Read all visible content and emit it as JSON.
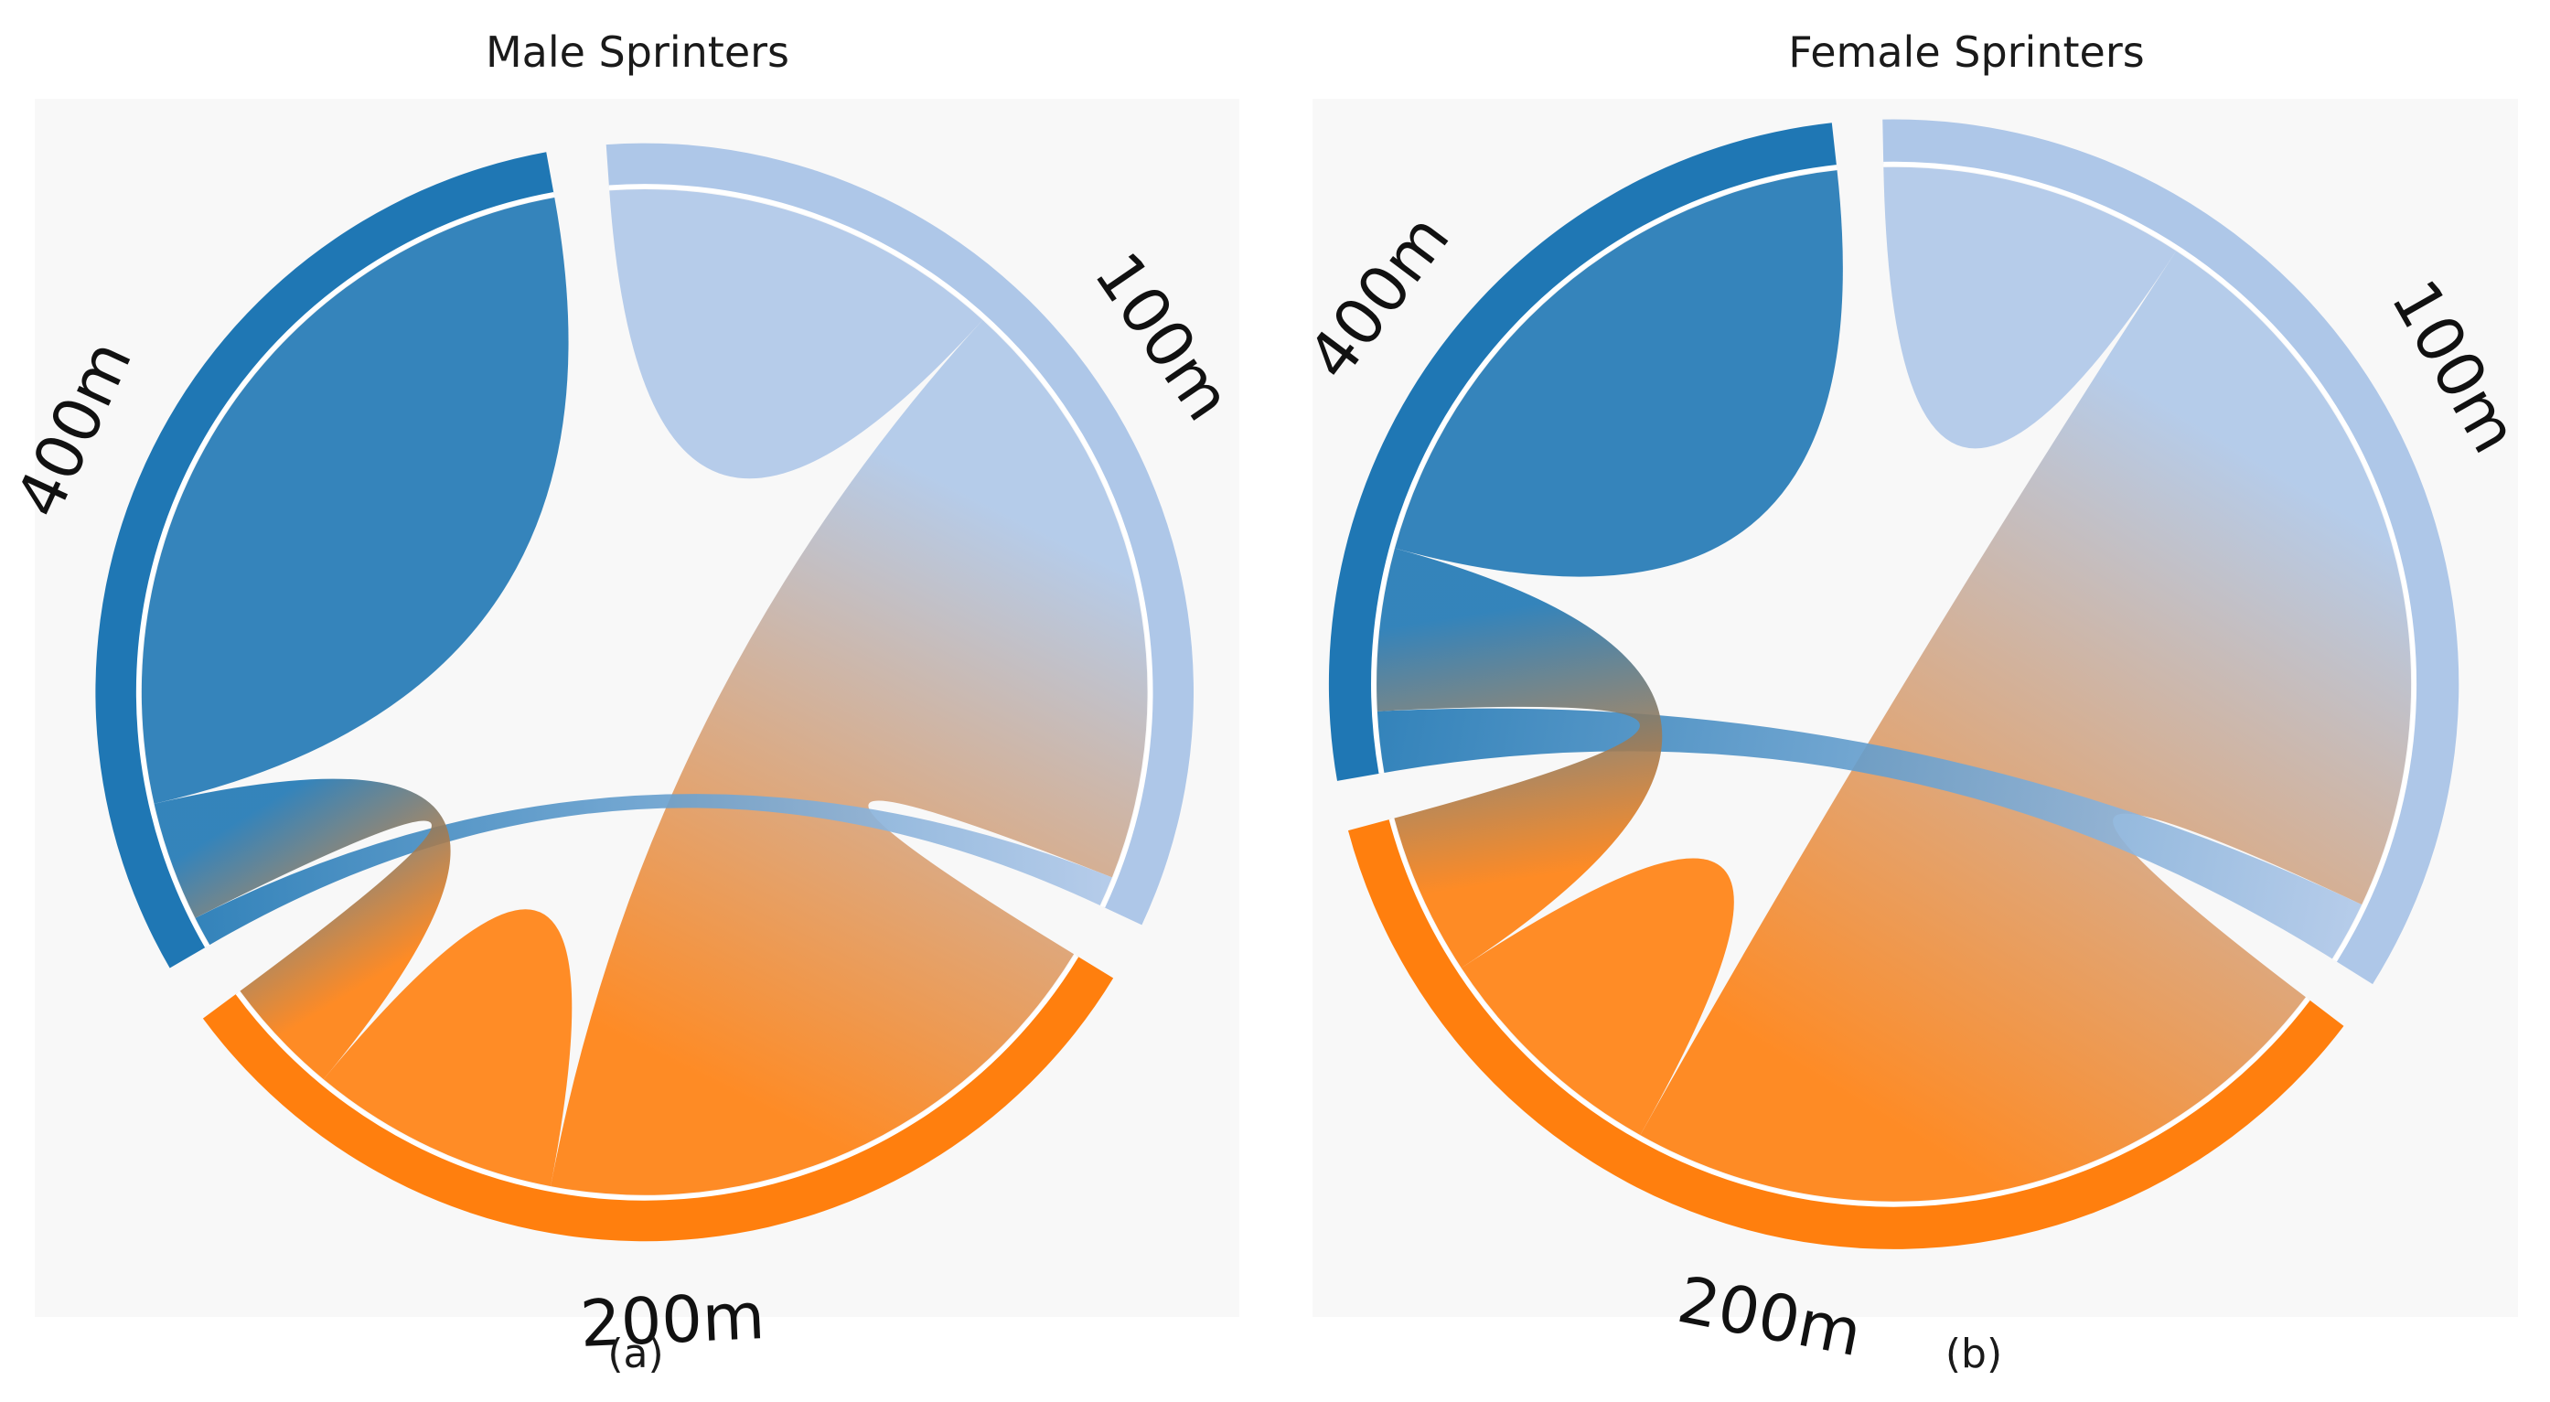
{
  "colors": {
    "m100": "#aec7e8",
    "m200": "#ff7f0e",
    "m400": "#1f77b4",
    "panel_bg": "#f8f8f8",
    "separator": "#ffffff"
  },
  "chart_data": [
    {
      "type": "chord",
      "title": "Male Sprinters",
      "caption": "(a)",
      "groups": [
        "100m",
        "200m",
        "400m"
      ],
      "matrix": [
        [
          40,
          60,
          3
        ],
        [
          60,
          25,
          12
        ],
        [
          3,
          12,
          80
        ]
      ]
    },
    {
      "type": "chord",
      "title": "Female Sprinters",
      "caption": "(b)",
      "groups": [
        "100m",
        "200m",
        "400m"
      ],
      "matrix": [
        [
          30,
          72,
          6
        ],
        [
          72,
          24,
          16
        ],
        [
          6,
          16,
          60
        ]
      ]
    }
  ]
}
